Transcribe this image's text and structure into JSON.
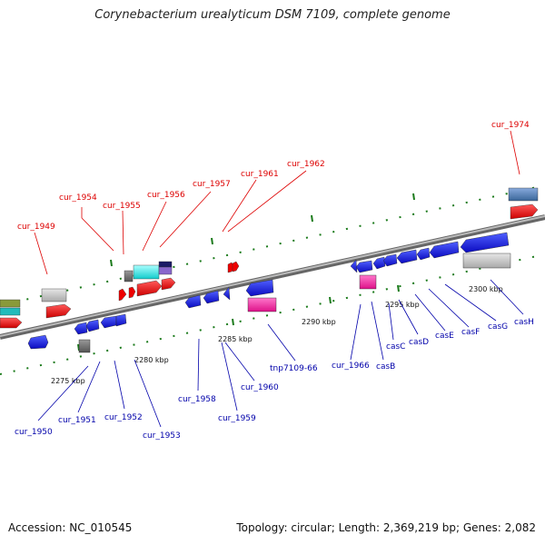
{
  "title": "Corynebacterium urealyticum DSM 7109, complete genome",
  "footer": {
    "accession": "Accession: NC_010545",
    "info": "Topology: circular; Length: 2,369,219 bp; Genes: 2,082"
  },
  "colors": {
    "forward_label": "#dd0000",
    "reverse_label": "#0000aa",
    "forward_gene": "#ee0000",
    "reverse_gene": "#1111dd",
    "backbone": "#888888",
    "tick": "#1a7a1a",
    "tick_label": "#111111"
  },
  "scale_labels": [
    "2275 kbp",
    "2280 kbp",
    "2285 kbp",
    "2290 kbp",
    "2295 kbp",
    "2300 kbp"
  ],
  "forward_labels": [
    "cur_1949",
    "cur_1954",
    "cur_1955",
    "cur_1956",
    "cur_1957",
    "cur_1961",
    "cur_1962",
    "cur_1974"
  ],
  "reverse_labels": [
    "cur_1950",
    "cur_1951",
    "cur_1952",
    "cur_1953",
    "cur_1958",
    "cur_1959",
    "cur_1960",
    "tnp7109-66",
    "cur_1966",
    "casB",
    "casC",
    "casD",
    "casE",
    "casF",
    "casG",
    "casH"
  ]
}
